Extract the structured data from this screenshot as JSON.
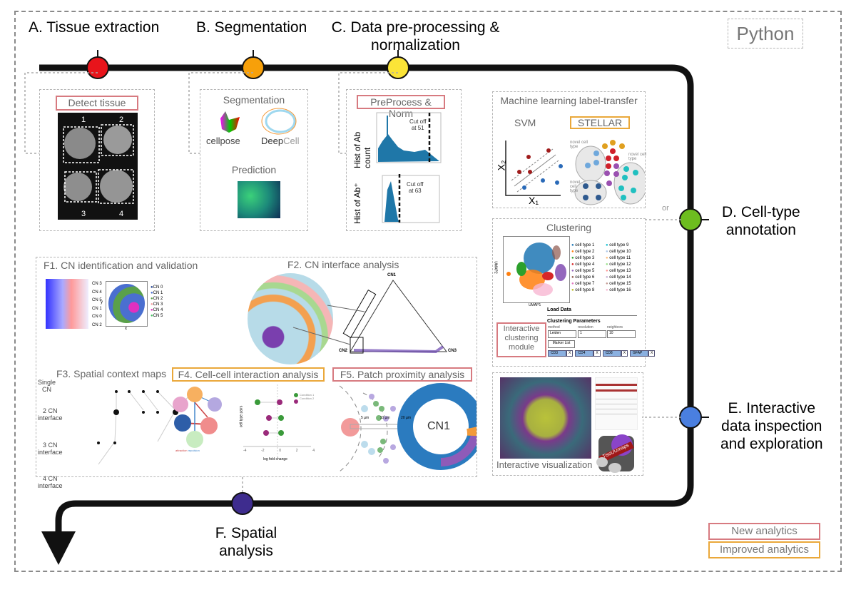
{
  "python_label": "Python",
  "steps": {
    "a": "A. Tissue extraction",
    "b": "B. Segmentation",
    "c": [
      "C. Data pre-processing &",
      "normalization"
    ],
    "d": [
      "D. Cell-type",
      "annotation"
    ],
    "e": [
      "E. Interactive",
      "data inspection",
      "and exploration"
    ],
    "f": [
      "F. Spatial",
      "analysis"
    ]
  },
  "node_colors": {
    "a": "#e8141b",
    "b": "#f7a00a",
    "c": "#fbe437",
    "d": "#6dbd1f",
    "e": "#4a7fe0",
    "f": "#3e2c8e"
  },
  "detect": {
    "title": "Detect tissue",
    "cores": [
      "1",
      "2",
      "3",
      "4"
    ]
  },
  "segmentation": {
    "title": "Segmentation",
    "tools": [
      "cellpose",
      "Deep",
      "Cell"
    ],
    "prediction": "Prediction"
  },
  "preprocess": {
    "title": "PreProcess & Norm",
    "hist1_ylabel": "Hist of Ab count",
    "hist1_cutoff": [
      "Cut off",
      "at 51"
    ],
    "hist2_ylabel": "Hist of Ab⁺",
    "hist2_cutoff": [
      "Cut off",
      "at 63"
    ]
  },
  "ml": {
    "title": "Machine learning label-transfer",
    "svm": "SVM",
    "stellar": "STELLAR",
    "x1": "X₁",
    "x2": "X₂",
    "novel": [
      "novel cell type",
      "novel cell type",
      "novel cell type"
    ]
  },
  "or_label": "or",
  "clustering": {
    "title": "Clustering",
    "xlabel": "UMAP1",
    "ylabel": "UMAP2",
    "legend": [
      {
        "label": "cell type 1",
        "color": "#1f77b4"
      },
      {
        "label": "cell type 2",
        "color": "#ff7f0e"
      },
      {
        "label": "cell type 3",
        "color": "#2ca02c"
      },
      {
        "label": "cell type 4",
        "color": "#d62728"
      },
      {
        "label": "cell type 5",
        "color": "#9467bd"
      },
      {
        "label": "cell type 6",
        "color": "#8c564b"
      },
      {
        "label": "cell type 7",
        "color": "#e377c2"
      },
      {
        "label": "cell type 8",
        "color": "#bcbd22"
      },
      {
        "label": "cell type 9",
        "color": "#17becf"
      },
      {
        "label": "cell type 10",
        "color": "#aec7e8"
      },
      {
        "label": "cell type 11",
        "color": "#ffbb78"
      },
      {
        "label": "cell type 12",
        "color": "#98df8a"
      },
      {
        "label": "cell type 13",
        "color": "#ff9896"
      },
      {
        "label": "cell type 14",
        "color": "#c5b0d5"
      },
      {
        "label": "cell type 15",
        "color": "#c49c94"
      },
      {
        "label": "cell type 16",
        "color": "#f7b6d2"
      }
    ],
    "module_label": [
      "Interactive",
      "clustering",
      "module"
    ],
    "load_data": "Load Data",
    "params_title": "Clustering Parameters",
    "method_label": "method",
    "method_value": "Leiden",
    "resolution_label": "resolution",
    "resolution_value": "1",
    "neighbors_label": "neighbors",
    "neighbors_value": "10",
    "marker_list": "Marker List",
    "markers": [
      "CD3",
      "CD4",
      "CD8",
      "GFAP"
    ],
    "remove": "X"
  },
  "viz": {
    "title": "Interactive visualization",
    "logo": "TissUUmaps"
  },
  "spatial": {
    "f1": {
      "title": "F1. CN identification and validation",
      "rows": [
        "CN 3",
        "CN 4",
        "CN 5",
        "CN 1",
        "CN 0",
        "CN 2"
      ],
      "legend": [
        {
          "label": "CN 0",
          "color": "#1f3f8f"
        },
        {
          "label": "CN 1",
          "color": "#4a6fd0"
        },
        {
          "label": "CN 2",
          "color": "#5aa04a"
        },
        {
          "label": "CN 3",
          "color": "#f4a0a0"
        },
        {
          "label": "CN 4",
          "color": "#e030c0"
        },
        {
          "label": "CN 5",
          "color": "#40c060"
        }
      ],
      "xlabel": "x",
      "ylabel": "y"
    },
    "f2": {
      "title": "F2. CN interface analysis",
      "vertices": [
        "CN1",
        "CN2",
        "CN3"
      ]
    },
    "f3": {
      "title": "F3. Spatial context maps",
      "levels": [
        [
          "Single",
          "CN"
        ],
        [
          "2 CN",
          "interface"
        ],
        [
          "3 CN",
          "interface"
        ],
        [
          "4 CN",
          "interface"
        ]
      ]
    },
    "f4": {
      "title": "F4. Cell-cell interaction analysis",
      "legend_net": [
        "attraction",
        "repulsion"
      ],
      "legend_dot": [
        "Condition 1",
        "Condition 2"
      ],
      "ylabel": "cell type pairs",
      "xlabel": "log fold change",
      "xticks": [
        "-4",
        "-2",
        "0",
        "2",
        "4"
      ]
    },
    "f5": {
      "title": "F5. Patch proximity analysis",
      "distances": [
        "5 µm",
        "10 µm",
        "20 µm"
      ],
      "center": "CN1"
    }
  },
  "legend": {
    "new": "New analytics",
    "improved": "Improved analytics",
    "new_color": "#d77a80",
    "improved_color": "#eaa83a"
  }
}
